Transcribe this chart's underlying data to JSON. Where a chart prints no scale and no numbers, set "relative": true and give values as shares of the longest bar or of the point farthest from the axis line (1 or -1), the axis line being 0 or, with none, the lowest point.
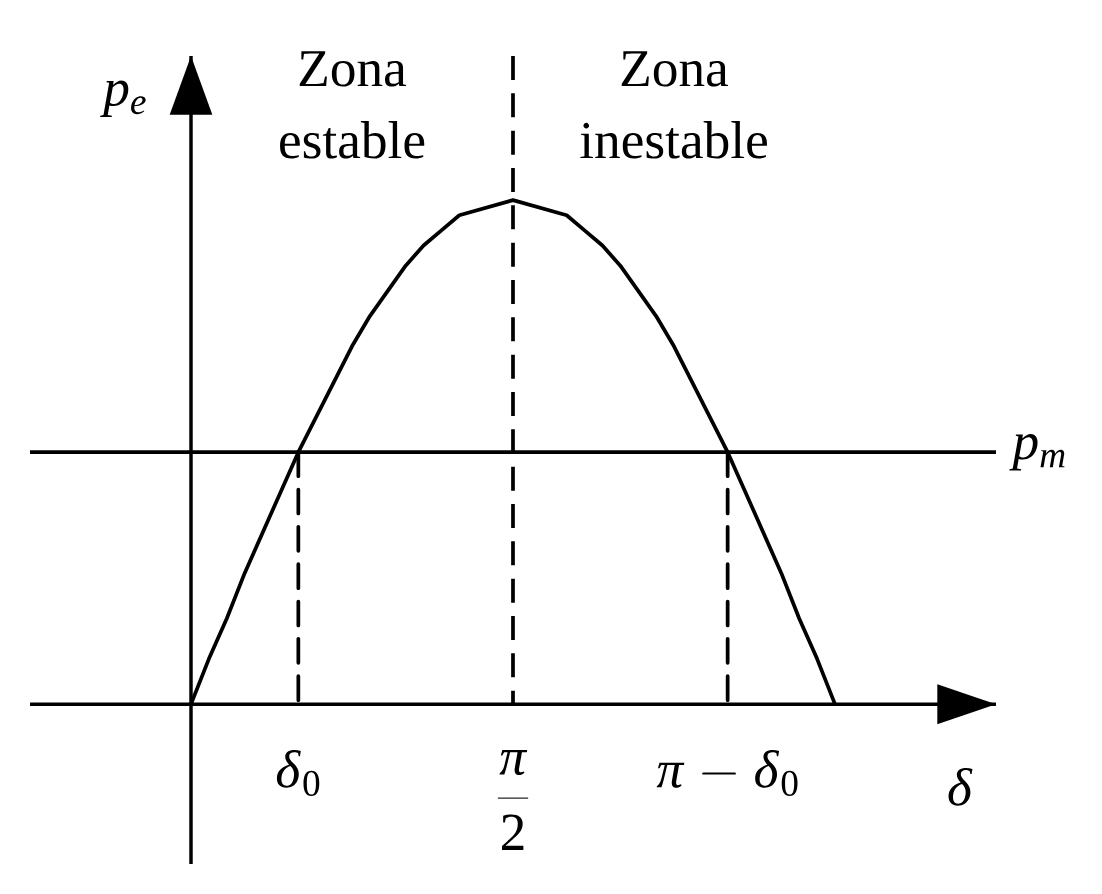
{
  "chart_data": {
    "type": "line",
    "relative": true,
    "xlabel": "\\delta",
    "ylabel": "p_e",
    "categories": [
      null,
      null,
      null,
      null,
      null,
      null,
      "\\delta_0",
      null,
      null,
      null,
      null,
      null,
      null,
      null,
      null,
      null,
      null,
      null,
      "\\frac{\\pi}{2}",
      null,
      null,
      null,
      null,
      null,
      null,
      null,
      null,
      null,
      null,
      null,
      "\\pi-\\delta_0",
      null,
      null,
      null,
      null,
      null,
      null
    ],
    "series": [
      {
        "color": "#000000",
        "values": [
          0,
          0.09,
          0.17,
          0.26,
          0.34,
          0.42,
          0.5,
          0.57,
          0.64,
          0.71,
          0.77,
          0.82,
          0.87,
          0.91,
          0.94,
          0.97,
          0.98,
          0.99,
          1,
          0.99,
          0.98,
          0.97,
          0.94,
          0.91,
          0.87,
          0.82,
          0.77,
          0.71,
          0.64,
          0.57,
          0.5,
          0.42,
          0.34,
          0.26,
          0.17,
          0.09,
          0
        ]
      },
      {
        "color": "#000000",
        "line_style": "dashed",
        "x": [
          "\\delta_0",
          "\\delta_0"
        ],
        "values": [
          0.5,
          0
        ]
      },
      {
        "color": "#000000",
        "line_style": "dashed",
        "x": [
          "\\pi-\\delta_0",
          "\\pi-\\delta_0"
        ],
        "values": [
          0.5,
          0
        ]
      }
    ],
    "ref_lines": [
      {
        "axis": "y",
        "value": 0.5,
        "label": "p_m"
      },
      {
        "axis": "x",
        "value": "\\frac{\\pi}{2}",
        "line_style": "dashed"
      }
    ],
    "annotations": [
      "Zona estable",
      "Zona inestable"
    ]
  }
}
